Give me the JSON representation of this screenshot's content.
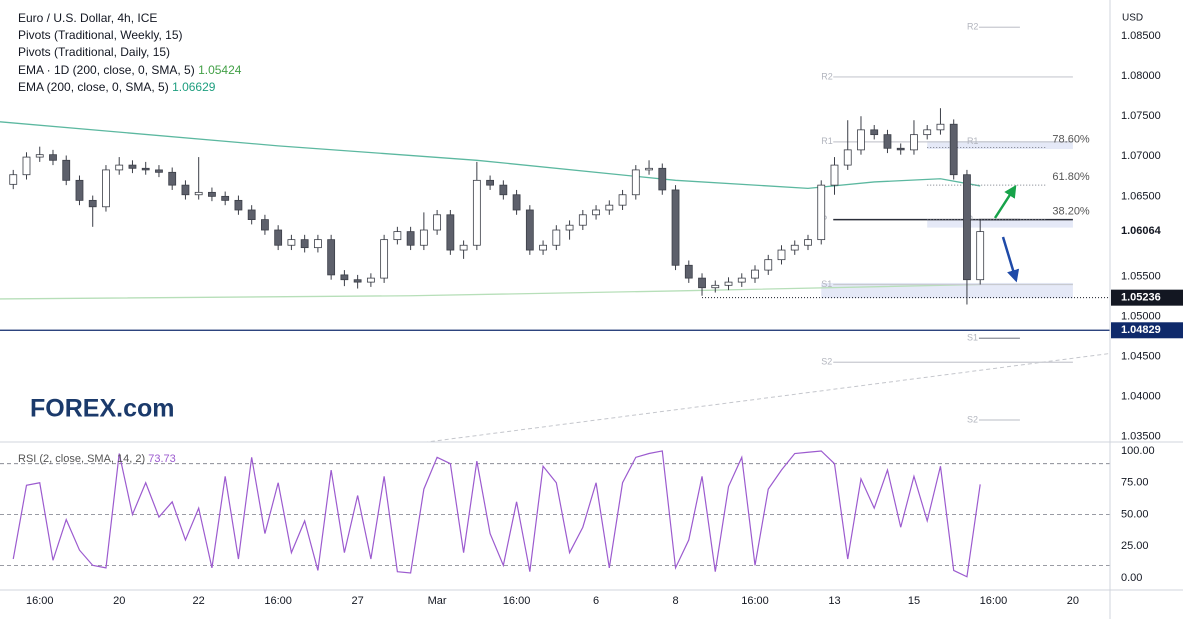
{
  "chart_data": [
    {
      "type": "candlestick",
      "title": "Euro / U.S. Dollar, 4h, ICE",
      "legend": [
        "Pivots (Traditional, Weekly, 15)",
        "Pivots (Traditional, Daily, 15)"
      ],
      "axis_label": "USD",
      "watermark": "FOREX.com",
      "up_color": "#ffffff",
      "down_color": "#5d606b",
      "edge_color": "#3b3e47",
      "open": [
        1.0665,
        1.0677,
        1.0699,
        1.0702,
        1.0695,
        1.067,
        1.0645,
        1.0637,
        1.0683,
        1.0689,
        1.0685,
        1.0683,
        1.068,
        1.0664,
        1.0652,
        1.0655,
        1.065,
        1.0645,
        1.0633,
        1.0621,
        1.0608,
        1.0589,
        1.0596,
        1.0586,
        1.0596,
        1.0552,
        1.0546,
        1.0543,
        1.0548,
        1.0596,
        1.0606,
        1.0589,
        1.0608,
        1.0627,
        1.0583,
        1.0589,
        1.067,
        1.0664,
        1.0652,
        1.0633,
        1.0583,
        1.0589,
        1.0608,
        1.0614,
        1.0627,
        1.0633,
        1.0639,
        1.0652,
        1.0683,
        1.0685,
        1.0658,
        1.0564,
        1.0548,
        1.0536,
        1.0539,
        1.0543,
        1.0548,
        1.0558,
        1.0571,
        1.0583,
        1.0589,
        1.0596,
        1.0664,
        1.0689,
        1.0708,
        1.0733,
        1.0727,
        1.071,
        1.0708,
        1.0727,
        1.0733,
        1.074,
        1.0677,
        1.0546
      ],
      "high": [
        1.0683,
        1.0705,
        1.0712,
        1.0708,
        1.0701,
        1.0676,
        1.0651,
        1.0689,
        1.0699,
        1.0695,
        1.0693,
        1.0689,
        1.0686,
        1.067,
        1.0699,
        1.0661,
        1.0656,
        1.0651,
        1.0639,
        1.0627,
        1.0614,
        1.0602,
        1.0602,
        1.0602,
        1.0602,
        1.0558,
        1.0552,
        1.0554,
        1.0602,
        1.0612,
        1.0612,
        1.063,
        1.0633,
        1.0633,
        1.0595,
        1.0693,
        1.0676,
        1.067,
        1.0658,
        1.0639,
        1.0595,
        1.0614,
        1.062,
        1.0633,
        1.0639,
        1.0645,
        1.0658,
        1.0689,
        1.0695,
        1.0691,
        1.0664,
        1.057,
        1.0554,
        1.0545,
        1.0549,
        1.0554,
        1.0564,
        1.0577,
        1.0589,
        1.0595,
        1.0602,
        1.067,
        1.0699,
        1.0745,
        1.075,
        1.0739,
        1.0733,
        1.0716,
        1.0745,
        1.0739,
        1.076,
        1.0746,
        1.0683,
        1.062
      ],
      "low": [
        1.0659,
        1.0671,
        1.0693,
        1.0689,
        1.0664,
        1.0639,
        1.0612,
        1.0631,
        1.0677,
        1.0679,
        1.0677,
        1.0674,
        1.0658,
        1.0646,
        1.0646,
        1.0644,
        1.0639,
        1.0627,
        1.0615,
        1.0602,
        1.0583,
        1.0583,
        1.058,
        1.058,
        1.0546,
        1.0538,
        1.0535,
        1.0537,
        1.0542,
        1.059,
        1.0583,
        1.0583,
        1.0602,
        1.0577,
        1.0572,
        1.0583,
        1.0658,
        1.0646,
        1.0627,
        1.0577,
        1.0577,
        1.0583,
        1.0596,
        1.0608,
        1.0621,
        1.0627,
        1.0633,
        1.0646,
        1.0677,
        1.0652,
        1.0558,
        1.0542,
        1.0526,
        1.053,
        1.0533,
        1.0537,
        1.0542,
        1.0552,
        1.0565,
        1.0577,
        1.0583,
        1.059,
        1.0652,
        1.0683,
        1.0702,
        1.0721,
        1.0704,
        1.0702,
        1.0702,
        1.0721,
        1.0727,
        1.0671,
        1.0515,
        1.054
      ],
      "close": [
        1.0677,
        1.0699,
        1.0702,
        1.0695,
        1.067,
        1.0645,
        1.0637,
        1.0683,
        1.0689,
        1.0685,
        1.0683,
        1.068,
        1.0664,
        1.0652,
        1.0655,
        1.065,
        1.0645,
        1.0633,
        1.0621,
        1.0608,
        1.0589,
        1.0596,
        1.0586,
        1.0596,
        1.0552,
        1.0546,
        1.0543,
        1.0548,
        1.0596,
        1.0606,
        1.0589,
        1.0608,
        1.0627,
        1.0583,
        1.0589,
        1.067,
        1.0664,
        1.0652,
        1.0633,
        1.0583,
        1.0589,
        1.0608,
        1.0614,
        1.0627,
        1.0633,
        1.0639,
        1.0652,
        1.0683,
        1.0685,
        1.0658,
        1.0564,
        1.0548,
        1.0536,
        1.0539,
        1.0543,
        1.0548,
        1.0558,
        1.0571,
        1.0583,
        1.0589,
        1.0596,
        1.0664,
        1.0689,
        1.0708,
        1.0733,
        1.0727,
        1.071,
        1.0708,
        1.0727,
        1.0733,
        1.074,
        1.0677,
        1.0546,
        1.0606
      ],
      "overlays": [
        {
          "name": "EMA · 1D (200, close, 0, SMA, 5)",
          "legend_value": 1.05424,
          "color": "#b7dfb9",
          "value_color": "#43a047",
          "x": [
            -1,
            30,
            50,
            73
          ],
          "values": [
            1.0522,
            1.0526,
            1.0532,
            1.054
          ]
        },
        {
          "name": "EMA (200, close, 0, SMA, 5)",
          "legend_value": 1.06629,
          "color": "#5cb8a0",
          "value_color": "#1e9e7f",
          "x": [
            -1,
            20,
            35,
            50,
            60,
            65,
            70,
            73
          ],
          "values": [
            1.0743,
            1.0713,
            1.0695,
            1.067,
            1.066,
            1.0668,
            1.0672,
            1.0663
          ]
        }
      ],
      "pivots": [
        {
          "label": "R2",
          "value": 1.0799,
          "start": 61,
          "end": 80,
          "color": "#c8cad0"
        },
        {
          "label": "R1",
          "value": 1.0718,
          "start": 61,
          "end": 80,
          "color": "#c8cad0"
        },
        {
          "label": "P",
          "value": 1.0621,
          "start": 61,
          "end": 80,
          "color": "#2a2e39"
        },
        {
          "label": "S1",
          "value": 1.054,
          "start": 61,
          "end": 80,
          "color": "#c8cad0"
        },
        {
          "label": "S2",
          "value": 1.0443,
          "start": 61,
          "end": 80,
          "color": "#c8cad0"
        },
        {
          "label": "R2",
          "value": 1.0861,
          "start": 72,
          "end": 76,
          "color": "#c8cad0"
        },
        {
          "label": "R1",
          "value": 1.0718,
          "start": 72,
          "end": 76,
          "color": "#c8cad0"
        },
        {
          "label": "P",
          "value": 1.0621,
          "start": 72,
          "end": 76,
          "color": "#2a2e39"
        },
        {
          "label": "S1",
          "value": 1.0473,
          "start": 72,
          "end": 76,
          "color": "#8a8d96"
        },
        {
          "label": "S2",
          "value": 1.0371,
          "start": 72,
          "end": 76,
          "color": "#c8cad0"
        }
      ],
      "fibs": [
        {
          "ratio": {
            "value": 78.6,
            "label": "78.60%"
          },
          "price": 1.0711
        },
        {
          "ratio": {
            "value": 61.8,
            "label": "61.80%"
          },
          "price": 1.0664
        },
        {
          "ratio": {
            "value": 38.2,
            "label": "38.20%"
          },
          "price": 1.0621
        }
      ],
      "fib_start": 69,
      "fib_end": 78,
      "zones": [
        {
          "high": 1.0719,
          "low": 1.0709,
          "start": 69,
          "end": 80
        },
        {
          "high": 1.062,
          "low": 1.0611,
          "start": 69,
          "end": 80
        },
        {
          "high": 1.0542,
          "low": 1.0523,
          "start": 61,
          "end": 80
        }
      ],
      "zone_color": "#7e8fd6",
      "price_markers": [
        {
          "value": 1.06064,
          "style": "plain",
          "color": "#ffffff",
          "text_color": "#131722"
        },
        {
          "value": 1.05236,
          "style": "dotted",
          "start": 52,
          "color": "#131722",
          "text_color": "#ffffff"
        },
        {
          "value": 1.04829,
          "style": "solid",
          "start": -1,
          "color": "#0f2a6b",
          "text_color": "#ffffff"
        }
      ],
      "trend_line": {
        "x": [
          31,
          82.8
        ],
        "values": [
          1.0343,
          1.0454
        ]
      },
      "xlim": [
        -1,
        82.8
      ],
      "ylim": [
        1.0346,
        1.0895
      ],
      "yticks": [
        {
          "value": 1.085,
          "label": "1.08500"
        },
        {
          "value": 1.08,
          "label": "1.08000"
        },
        {
          "value": 1.075,
          "label": "1.07500"
        },
        {
          "value": 1.07,
          "label": "1.07000"
        },
        {
          "value": 1.065,
          "label": "1.06500"
        },
        {
          "value": 1.055,
          "label": "1.05500"
        },
        {
          "value": 1.05,
          "label": "1.05000"
        },
        {
          "value": 1.045,
          "label": "1.04500"
        },
        {
          "value": 1.04,
          "label": "1.04000"
        },
        {
          "value": 1.035,
          "label": "1.03500"
        }
      ],
      "xticks": [
        {
          "value": 2,
          "label": "16:00"
        },
        {
          "value": 8,
          "label": "20"
        },
        {
          "value": 14,
          "label": "22"
        },
        {
          "value": 20,
          "label": "16:00"
        },
        {
          "value": 26,
          "label": "27"
        },
        {
          "value": 32,
          "label": "Mar"
        },
        {
          "value": 38,
          "label": "16:00"
        },
        {
          "value": 44,
          "label": "6"
        },
        {
          "value": 50,
          "label": "8"
        },
        {
          "value": 56,
          "label": "16:00"
        },
        {
          "value": 62,
          "label": "13"
        },
        {
          "value": 68,
          "label": "15"
        },
        {
          "value": 74,
          "label": "16:00"
        },
        {
          "value": 80,
          "label": "20"
        }
      ]
    },
    {
      "type": "line",
      "title": "RSI (2, close, SMA, 14, 2)",
      "color": "#9c5bcf",
      "values": [
        15,
        73,
        75,
        14,
        46,
        22,
        10,
        8,
        98,
        50,
        75,
        48,
        60,
        30,
        55,
        8,
        80,
        15,
        95,
        35,
        75,
        20,
        45,
        6,
        85,
        20,
        65,
        15,
        80,
        5,
        4,
        70,
        95,
        90,
        20,
        92,
        35,
        10,
        60,
        5,
        88,
        75,
        20,
        40,
        75,
        8,
        75,
        95,
        98,
        100,
        8,
        30,
        80,
        5,
        72,
        95,
        10,
        70,
        85,
        98,
        99,
        100,
        90,
        15,
        78,
        55,
        85,
        40,
        80,
        45,
        88,
        6,
        1,
        73.73
      ],
      "levels": [
        90,
        50,
        10
      ],
      "xlim": [
        -1,
        82.8
      ],
      "ylim": [
        -9.4,
        104.7
      ],
      "yticks": [
        {
          "value": 100,
          "label": "100.00"
        },
        {
          "value": 75,
          "label": "75.00"
        },
        {
          "value": 50,
          "label": "50.00"
        },
        {
          "value": 25,
          "label": "25.00"
        },
        {
          "value": 0,
          "label": "0.00"
        }
      ]
    }
  ]
}
